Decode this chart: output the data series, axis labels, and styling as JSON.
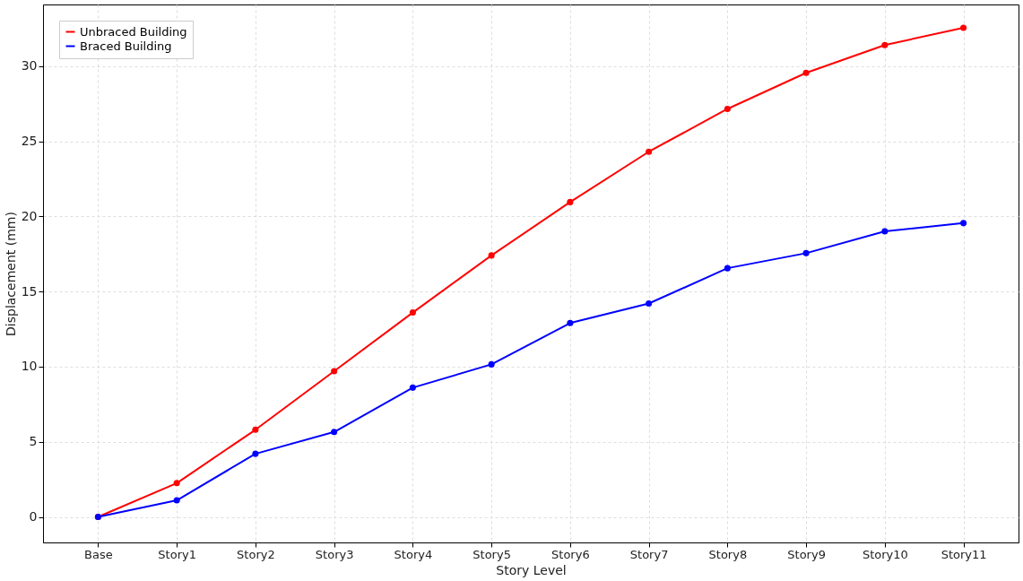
{
  "chart_data": {
    "type": "line",
    "xlabel": "Story Level",
    "ylabel": "Displacement (mm)",
    "categories": [
      "Base",
      "Story1",
      "Story2",
      "Story3",
      "Story4",
      "Story5",
      "Story6",
      "Story7",
      "Story8",
      "Story9",
      "Story10",
      "Story11"
    ],
    "series": [
      {
        "name": "Unbraced Building",
        "color": "#ff0000",
        "values": [
          0,
          2.25,
          5.8,
          9.7,
          13.6,
          17.4,
          20.95,
          24.3,
          27.15,
          29.55,
          31.4,
          32.55
        ]
      },
      {
        "name": "Braced Building",
        "color": "#0000ff",
        "values": [
          0,
          1.1,
          4.2,
          5.65,
          8.6,
          10.15,
          12.9,
          14.2,
          16.55,
          17.55,
          19.0,
          19.55
        ]
      }
    ],
    "ylim": [
      -1.7,
      34.1
    ],
    "yticks": [
      0,
      5,
      10,
      15,
      20,
      25,
      30
    ],
    "grid": true,
    "legend": "top left",
    "marker": "circle",
    "line_style": "solid"
  }
}
